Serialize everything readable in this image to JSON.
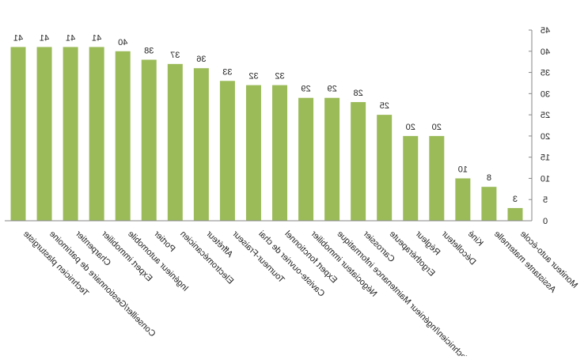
{
  "chart_data": {
    "type": "bar",
    "orientation": "vertical",
    "mirrored": true,
    "categories": [
      "Technicien plasturgiste",
      "Conseiller/Gestionnaire de patrimoine",
      "Charpentier",
      "Expert immobilier",
      "Ingénieur automobile",
      "Portier",
      "Electromécanicien",
      "Affréteur",
      "Tourneur-Fraiseur",
      "Caviste-ouvrier de chai",
      "Expert fonctionnel",
      "Négociateur immobilier",
      "Technicien/Ingénieur Maintenance informatique",
      "Carrossier",
      "Ergothérapeute",
      "Régleur",
      "Décolleteur",
      "Kiné",
      "Assistante maternelle",
      "Moniteur auto-école"
    ],
    "values": [
      41,
      41,
      41,
      41,
      40,
      38,
      37,
      36,
      33,
      32,
      32,
      29,
      29,
      28,
      25,
      20,
      20,
      10,
      8,
      3
    ],
    "title": "",
    "xlabel": "",
    "ylabel": "",
    "ylim": [
      0,
      45
    ],
    "yticks": [
      0,
      5,
      10,
      15,
      20,
      25,
      30,
      35,
      40,
      45
    ],
    "y_axis_side": "right",
    "grid": false,
    "legend": "none",
    "bar_color": "#9bbb59",
    "axis_color": "#868686",
    "show_data_labels": true
  }
}
